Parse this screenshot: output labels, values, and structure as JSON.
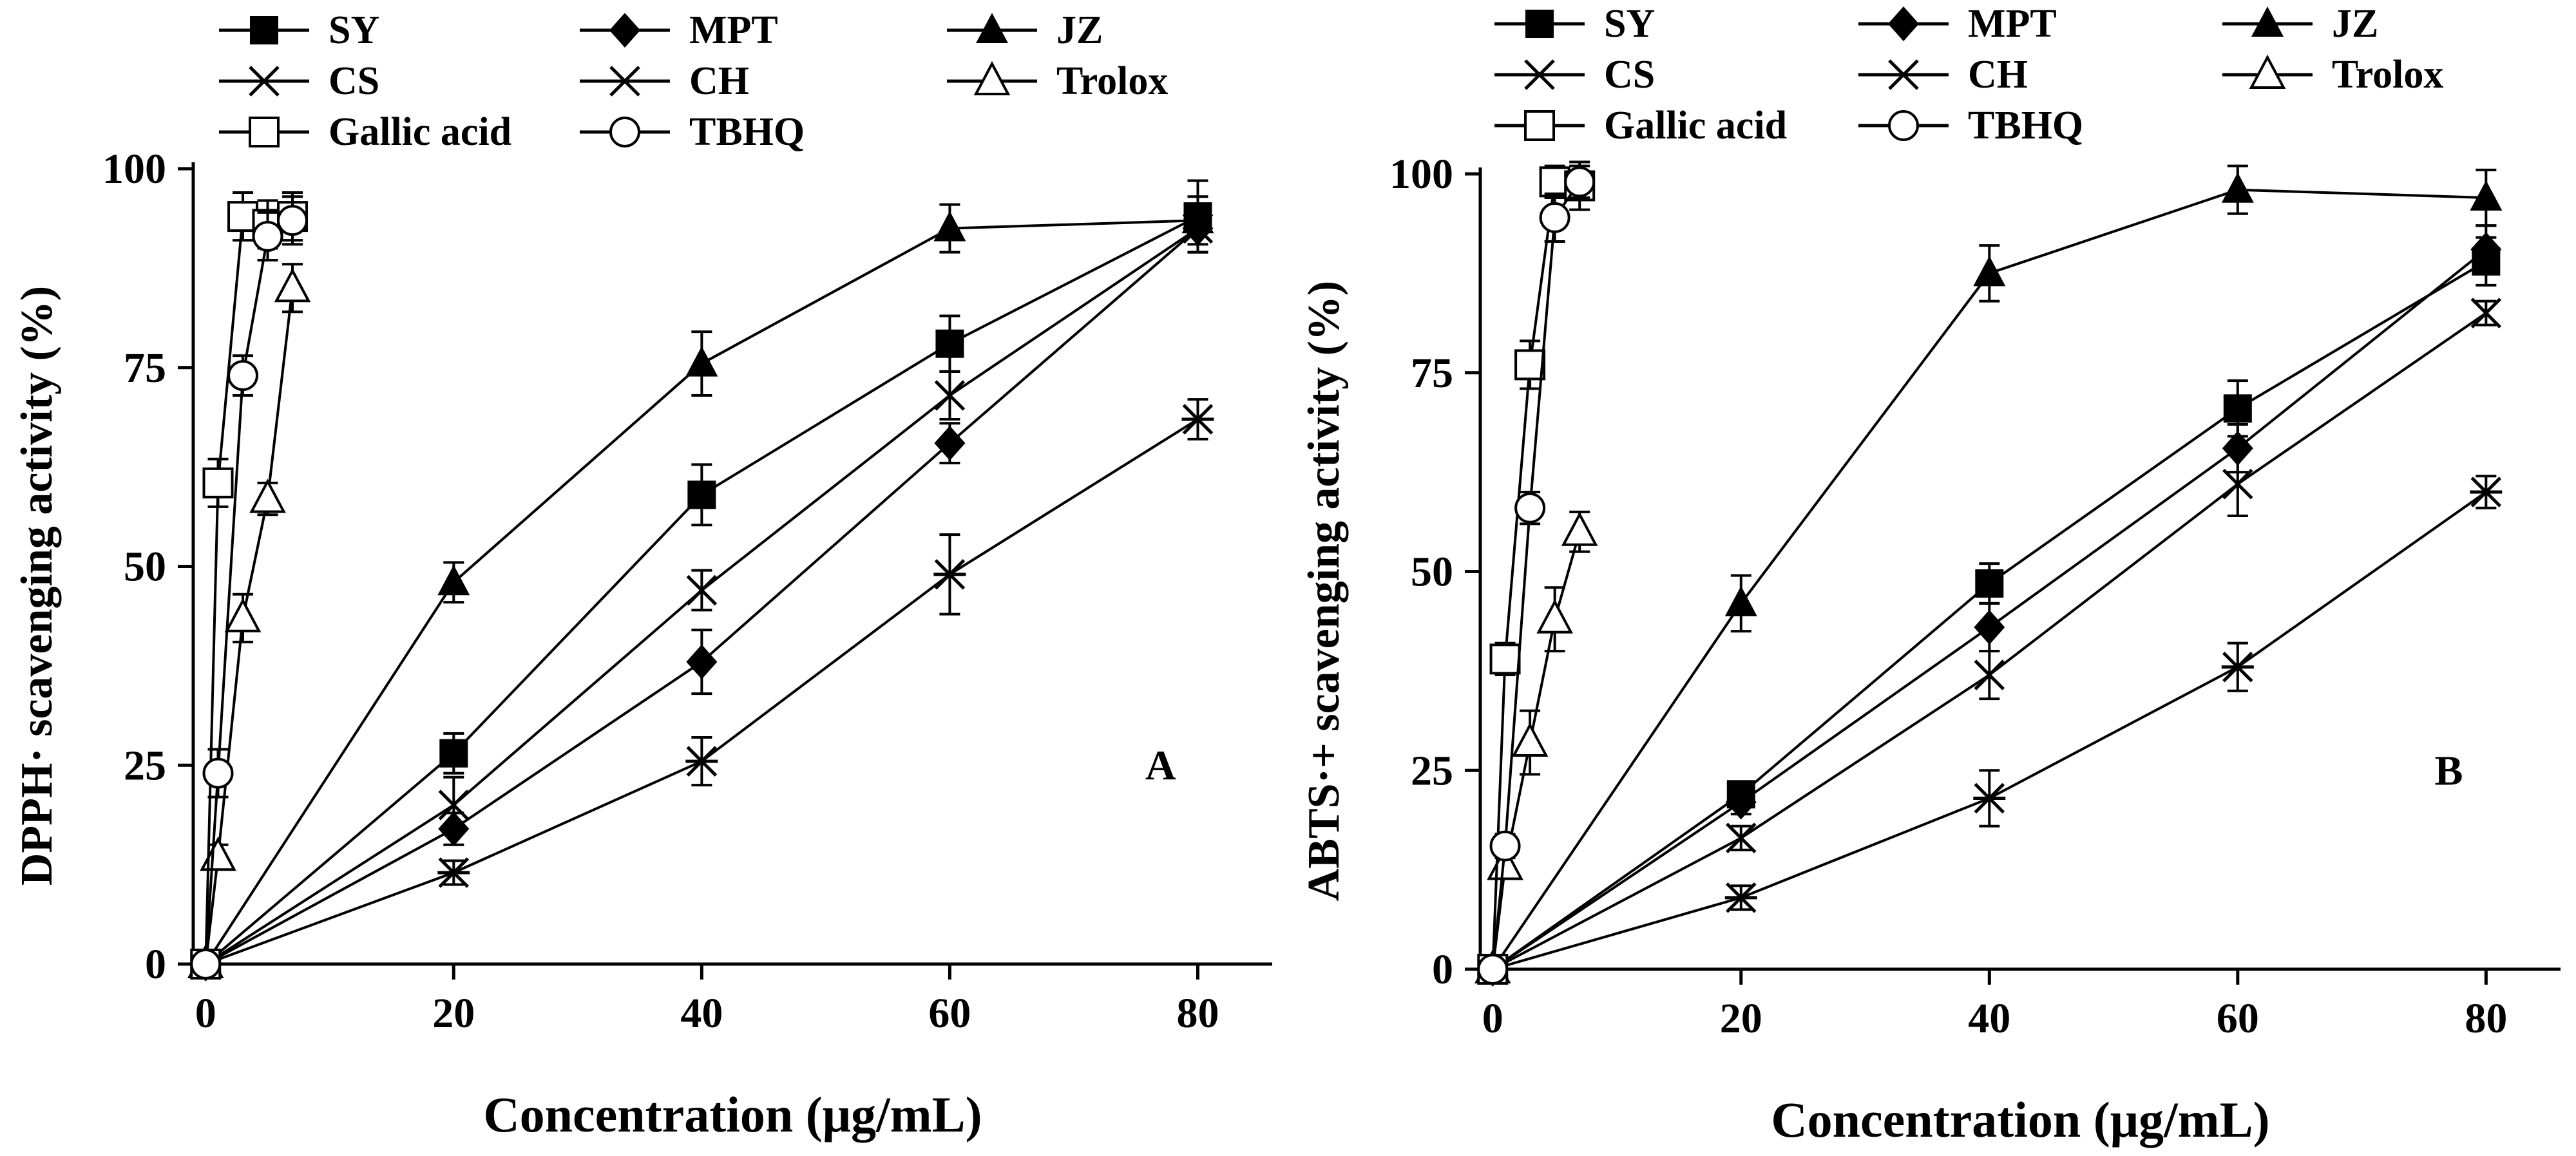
{
  "chart_data": [
    {
      "type": "line",
      "panel_label": "A",
      "ylabel": "DPPH· scavenging activity (%)",
      "xlabel": "Concentration (μg/mL)",
      "xlim": [
        -1,
        86
      ],
      "ylim": [
        0,
        100
      ],
      "xticks": [
        "0",
        "20",
        "40",
        "60",
        "80"
      ],
      "yticks": [
        "0",
        "25",
        "50",
        "75",
        "100"
      ],
      "legend": {
        "position": "top",
        "entries": [
          "SY",
          "MPT",
          "JZ",
          "CS",
          "CH",
          "Trolox",
          "Gallic acid",
          "TBHQ"
        ]
      },
      "series": [
        {
          "name": "SY",
          "marker": "square-filled",
          "x": [
            0,
            20,
            40,
            60,
            80
          ],
          "y": [
            0,
            26.5,
            59,
            78,
            94
          ],
          "err": [
            0,
            2.5,
            3.8,
            3.5,
            4.5
          ]
        },
        {
          "name": "MPT",
          "marker": "diamond-filled",
          "x": [
            0,
            20,
            40,
            60,
            80
          ],
          "y": [
            0,
            17,
            38,
            65.5,
            92.5
          ],
          "err": [
            0,
            2,
            4,
            2.5,
            3
          ]
        },
        {
          "name": "JZ",
          "marker": "triangle-filled",
          "x": [
            0,
            20,
            40,
            60,
            80
          ],
          "y": [
            0,
            48,
            75.5,
            92.5,
            93.5
          ],
          "err": [
            0,
            2.5,
            4,
            3,
            3
          ]
        },
        {
          "name": "CS",
          "marker": "x",
          "x": [
            0,
            20,
            40,
            60,
            80
          ],
          "y": [
            0,
            20,
            47,
            71.5,
            92.5
          ],
          "err": [
            0,
            3.5,
            2.5,
            3,
            3
          ]
        },
        {
          "name": "CH",
          "marker": "asterisk",
          "x": [
            0,
            20,
            40,
            60,
            80
          ],
          "y": [
            0,
            11.5,
            25.5,
            49,
            68.5
          ],
          "err": [
            0,
            1.5,
            3,
            5,
            2.5
          ]
        },
        {
          "name": "Trolox",
          "marker": "triangle-open",
          "x": [
            0,
            1,
            3,
            5,
            7
          ],
          "y": [
            0,
            13.5,
            43.5,
            58.5,
            85
          ],
          "err": [
            0,
            1.5,
            3,
            2,
            3
          ]
        },
        {
          "name": "Gallic acid",
          "marker": "square-open",
          "x": [
            0,
            1,
            3,
            5,
            7
          ],
          "y": [
            0,
            60.5,
            94,
            93,
            94
          ],
          "err": [
            0,
            3,
            3,
            3,
            3
          ]
        },
        {
          "name": "TBHQ",
          "marker": "circle-open",
          "x": [
            0,
            1,
            3,
            5,
            7
          ],
          "y": [
            0,
            24,
            74,
            91.5,
            93.5
          ],
          "err": [
            0,
            3,
            2.5,
            3,
            3
          ]
        }
      ]
    },
    {
      "type": "line",
      "panel_label": "B",
      "ylabel": "ABTS·+ scavenging activity (%)",
      "xlabel": "Concentration (μg/mL)",
      "xlim": [
        -1,
        86
      ],
      "ylim": [
        0,
        100
      ],
      "xticks": [
        "0",
        "20",
        "40",
        "60",
        "80"
      ],
      "yticks": [
        "0",
        "25",
        "50",
        "75",
        "100"
      ],
      "legend": {
        "position": "top",
        "entries": [
          "SY",
          "MPT",
          "JZ",
          "CS",
          "CH",
          "Trolox",
          "Gallic acid",
          "TBHQ"
        ]
      },
      "series": [
        {
          "name": "SY",
          "marker": "square-filled",
          "x": [
            0,
            20,
            40,
            60,
            80
          ],
          "y": [
            0,
            22,
            48.5,
            70.5,
            89
          ],
          "err": [
            0,
            1.5,
            2.5,
            3.5,
            3
          ]
        },
        {
          "name": "MPT",
          "marker": "diamond-filled",
          "x": [
            0,
            20,
            40,
            60,
            80
          ],
          "y": [
            0,
            21,
            43,
            65.5,
            90.5
          ],
          "err": [
            0,
            1.5,
            3,
            3,
            3
          ]
        },
        {
          "name": "JZ",
          "marker": "triangle-filled",
          "x": [
            0,
            20,
            40,
            60,
            80
          ],
          "y": [
            0,
            46,
            87.5,
            98,
            97
          ],
          "err": [
            0,
            3.5,
            3.5,
            3,
            3.5
          ]
        },
        {
          "name": "CS",
          "marker": "x",
          "x": [
            0,
            20,
            40,
            60,
            80
          ],
          "y": [
            0,
            16.5,
            37,
            61,
            82.5
          ],
          "err": [
            0,
            1.5,
            3,
            4,
            1.5
          ]
        },
        {
          "name": "CH",
          "marker": "asterisk",
          "x": [
            0,
            20,
            40,
            60,
            80
          ],
          "y": [
            0,
            9,
            21.5,
            38,
            60
          ],
          "err": [
            0,
            1.5,
            3.5,
            3,
            2
          ]
        },
        {
          "name": "Trolox",
          "marker": "triangle-open",
          "x": [
            0,
            1,
            3,
            5,
            7
          ],
          "y": [
            0,
            13,
            28.5,
            44,
            55
          ],
          "err": [
            0,
            1.5,
            4,
            4,
            2.5
          ]
        },
        {
          "name": "Gallic acid",
          "marker": "square-open",
          "x": [
            0,
            1,
            3,
            5,
            7
          ],
          "y": [
            0,
            39,
            76,
            99,
            98.5
          ],
          "err": [
            0,
            2,
            3,
            2,
            3
          ]
        },
        {
          "name": "TBHQ",
          "marker": "circle-open",
          "x": [
            0,
            1,
            3,
            5,
            7
          ],
          "y": [
            0,
            15.5,
            58,
            94.5,
            99
          ],
          "err": [
            0,
            1.5,
            2,
            3,
            2
          ]
        }
      ]
    }
  ]
}
